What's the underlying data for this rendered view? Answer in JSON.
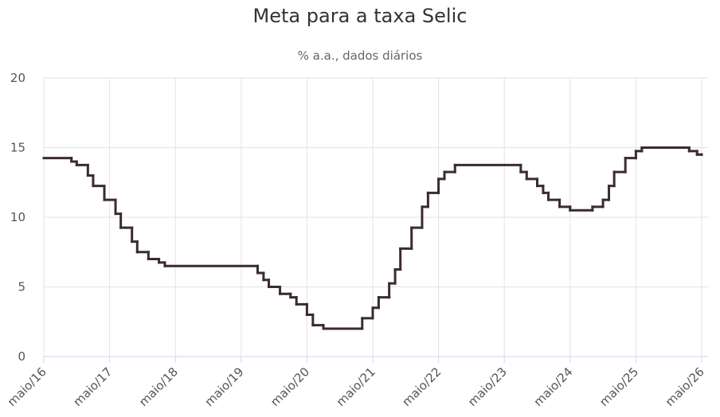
{
  "chart_data": {
    "type": "step",
    "title": "Meta para a taxa Selic",
    "subtitle": "% a.a., dados diários",
    "x": [
      2016.33,
      2016.75,
      2016.83,
      2017.0,
      2017.08,
      2017.25,
      2017.42,
      2017.5,
      2017.67,
      2017.75,
      2017.92,
      2018.08,
      2018.17,
      2019.58,
      2019.67,
      2019.75,
      2019.92,
      2020.08,
      2020.17,
      2020.33,
      2020.42,
      2020.58,
      2021.17,
      2021.33,
      2021.42,
      2021.58,
      2021.67,
      2021.75,
      2021.92,
      2022.08,
      2022.17,
      2022.33,
      2022.42,
      2022.58,
      2023.58,
      2023.67,
      2023.83,
      2023.92,
      2024.0,
      2024.17,
      2024.33,
      2024.67,
      2024.83,
      2024.92,
      2025.0,
      2025.17,
      2025.33,
      2025.42,
      2026.14,
      2026.26,
      2026.33
    ],
    "series": [
      {
        "color": "#3b2a33",
        "values": [
          14.25,
          14.0,
          13.75,
          13.0,
          12.25,
          11.25,
          10.25,
          9.25,
          8.25,
          7.5,
          7.0,
          6.75,
          6.5,
          6.0,
          5.5,
          5.0,
          4.5,
          4.25,
          3.75,
          3.0,
          2.25,
          2.0,
          2.75,
          3.5,
          4.25,
          5.25,
          6.25,
          7.75,
          9.25,
          10.75,
          11.75,
          12.75,
          13.25,
          13.75,
          13.25,
          12.75,
          12.25,
          11.75,
          11.25,
          10.75,
          10.5,
          10.75,
          11.25,
          12.25,
          13.25,
          14.25,
          14.75,
          15.0,
          14.75,
          14.5,
          14.5
        ]
      }
    ],
    "xlim": [
      2016.33,
      2026.33
    ],
    "xticks": [
      {
        "value": 2016.33,
        "label": "maio/16"
      },
      {
        "value": 2017.33,
        "label": "maio/17"
      },
      {
        "value": 2018.33,
        "label": "maio/18"
      },
      {
        "value": 2019.33,
        "label": "maio/19"
      },
      {
        "value": 2020.33,
        "label": "maio/20"
      },
      {
        "value": 2021.33,
        "label": "maio/21"
      },
      {
        "value": 2022.33,
        "label": "maio/22"
      },
      {
        "value": 2023.33,
        "label": "maio/23"
      },
      {
        "value": 2024.33,
        "label": "maio/24"
      },
      {
        "value": 2025.33,
        "label": "maio/25"
      },
      {
        "value": 2026.33,
        "label": "maio/26"
      }
    ],
    "ylim": [
      0,
      20
    ],
    "yticks": [
      0,
      5,
      10,
      15,
      20
    ],
    "grid": true
  }
}
